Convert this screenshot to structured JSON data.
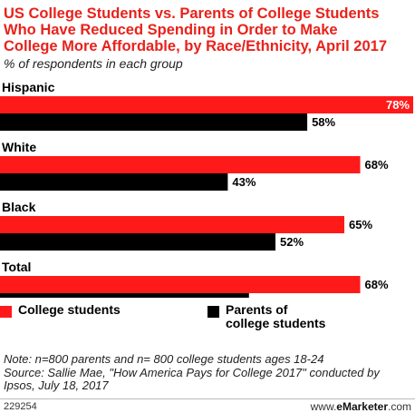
{
  "title_lines": [
    "US College Students vs. Parents of College Students",
    "Who Have Reduced Spending in Order to Make",
    "College More Affordable, by Race/Ethnicity, April 2017"
  ],
  "subtitle": "% of respondents in each group",
  "colors": {
    "college_students": "#ff1a1a",
    "parents": "#000000",
    "title": "#e8221b"
  },
  "chart_data": {
    "type": "bar",
    "orientation": "horizontal",
    "categories": [
      "Hispanic",
      "White",
      "Black",
      "Total"
    ],
    "series": [
      {
        "name": "College students",
        "values": [
          78,
          68,
          65,
          68
        ]
      },
      {
        "name": "Parents of college students",
        "values": [
          58,
          43,
          52,
          47
        ]
      }
    ],
    "value_suffix": "%",
    "xlim": [
      0,
      78
    ],
    "grid": false,
    "legend_position": "bottom"
  },
  "legend": {
    "college_students": "College students",
    "parents_line1": "Parents of",
    "parents_line2": "college students"
  },
  "note_lines": [
    "Note: n=800 parents and n= 800 college students ages 18-24",
    "Source: Sallie Mae, \"How America Pays for College 2017\" conducted by",
    "Ipsos, July 18, 2017"
  ],
  "footer": {
    "id": "229254",
    "brand_prefix": "www.",
    "brand_name": "eMarketer",
    "brand_suffix": ".com"
  }
}
